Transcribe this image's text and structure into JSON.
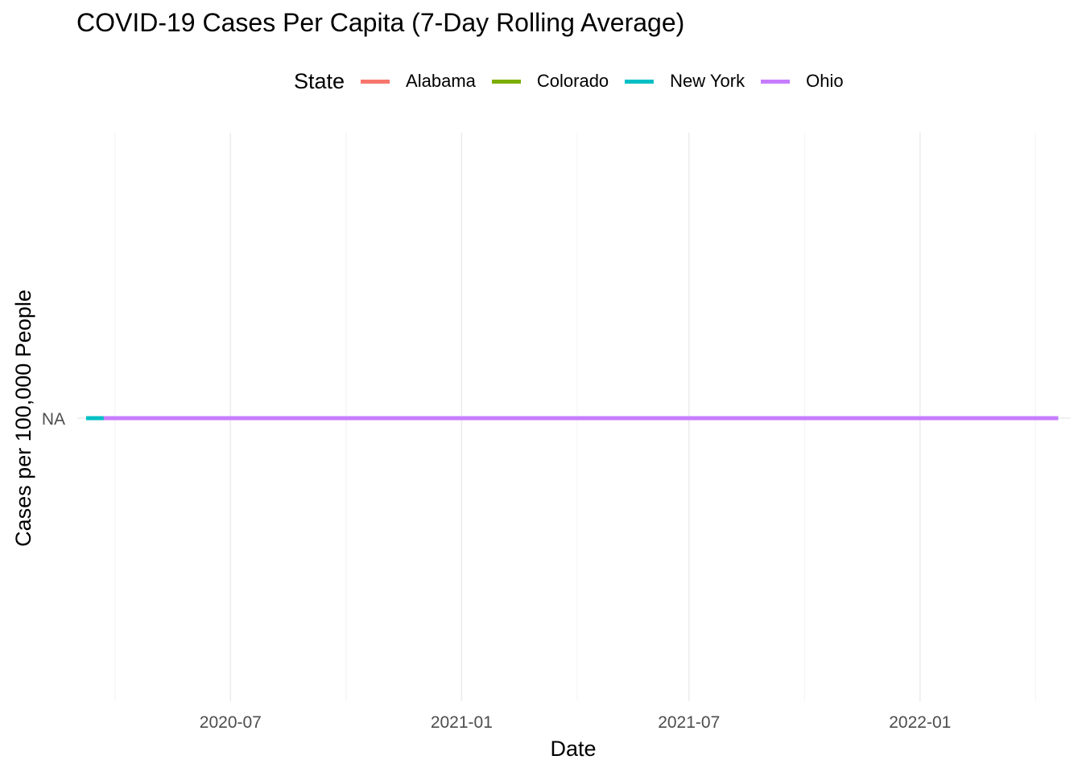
{
  "chart_data": {
    "type": "line",
    "title": "COVID-19 Cases Per Capita (7-Day Rolling Average)",
    "xlabel": "Date",
    "ylabel": "Cases per 100,000 People",
    "legend_title": "State",
    "legend_position": "top",
    "grid": true,
    "x_range": [
      "2020-03-01",
      "2022-05-01"
    ],
    "x_ticks": [
      "2020-07-01",
      "2021-01-01",
      "2021-07-01",
      "2022-01-01"
    ],
    "x_tick_labels": [
      "2020-07",
      "2021-01",
      "2021-07",
      "2022-01"
    ],
    "y_ticks": [
      "NA"
    ],
    "series": [
      {
        "name": "Alabama",
        "color": "#F8766D",
        "x_start": "2020-03-22",
        "x_end": "2022-04-21",
        "y": "NA"
      },
      {
        "name": "Colorado",
        "color": "#7CAE00",
        "x_start": "2020-03-22",
        "x_end": "2022-04-21",
        "y": "NA"
      },
      {
        "name": "New York",
        "color": "#00BFC4",
        "x_start": "2020-03-08",
        "x_end": "2022-04-21",
        "y": "NA"
      },
      {
        "name": "Ohio",
        "color": "#C77CFF",
        "x_start": "2020-03-22",
        "x_end": "2022-04-21",
        "y": "NA"
      }
    ]
  }
}
